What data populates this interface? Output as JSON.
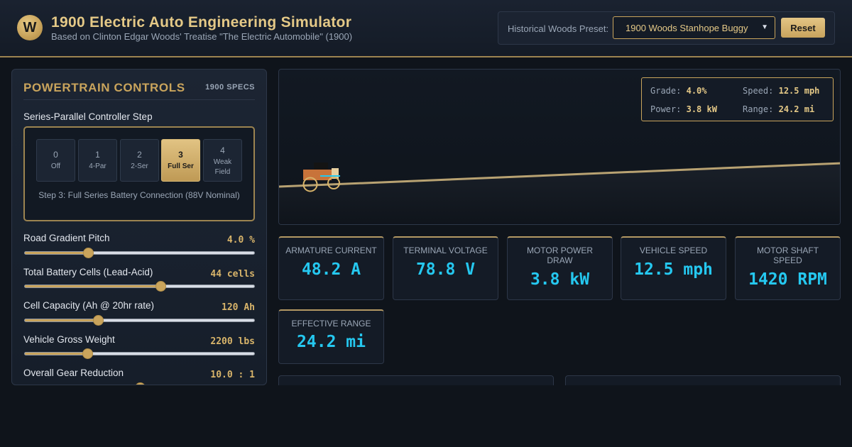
{
  "header": {
    "logo_letter": "W",
    "title": "1900 Electric Auto Engineering Simulator",
    "subtitle": "Based on Clinton Edgar Woods' Treatise \"The Electric Automobile\" (1900)",
    "preset_label": "Historical Woods Preset:",
    "preset_value": "1900 Woods Stanhope Buggy",
    "reset_label": "Reset"
  },
  "controls": {
    "title": "POWERTRAIN CONTROLS",
    "badge": "1900 SPECS",
    "controller": {
      "label": "Series-Parallel Controller Step",
      "steps": [
        {
          "num": "0",
          "label": "Off"
        },
        {
          "num": "1",
          "label": "4-Par"
        },
        {
          "num": "2",
          "label": "2-Ser"
        },
        {
          "num": "3",
          "label": "Full Ser"
        },
        {
          "num": "4",
          "label": "Weak Field"
        }
      ],
      "active_step": 3,
      "description": "Step 3: Full Series Battery Connection (88V Nominal)"
    },
    "sliders": [
      {
        "label": "Road Gradient Pitch",
        "value": "4.0 %",
        "fraction": 0.276
      },
      {
        "label": "Total Battery Cells (Lead-Acid)",
        "value": "44 cells",
        "fraction": 0.59
      },
      {
        "label": "Cell Capacity (Ah @ 20hr rate)",
        "value": "120 Ah",
        "fraction": 0.32
      },
      {
        "label": "Vehicle Gross Weight",
        "value": "2200 lbs",
        "fraction": 0.272
      },
      {
        "label": "Overall Gear Reduction",
        "value": "10.0 : 1",
        "fraction": 0.5
      }
    ]
  },
  "hud": {
    "grade_label": "Grade:",
    "grade_value": "4.0%",
    "speed_label": "Speed:",
    "speed_value": "12.5 mph",
    "power_label": "Power:",
    "power_value": "3.8 kW",
    "range_label": "Range:",
    "range_value": "24.2 mi"
  },
  "scene": {
    "road_color": "#b8a272",
    "car_body_color": "#c8733a",
    "current_color": "#25c8f0"
  },
  "metrics": [
    {
      "label": "ARMATURE CURRENT",
      "value": "48.2 A"
    },
    {
      "label": "TERMINAL VOLTAGE",
      "value": "78.8 V"
    },
    {
      "label": "MOTOR POWER DRAW",
      "value": "3.8 kW"
    },
    {
      "label": "VEHICLE SPEED",
      "value": "12.5 mph"
    },
    {
      "label": "MOTOR SHAFT SPEED",
      "value": "1420 RPM"
    },
    {
      "label": "EFFECTIVE RANGE",
      "value": "24.2 mi"
    }
  ],
  "colors": {
    "accent_gold": "#c9a45c",
    "value_cyan": "#25c8f0",
    "background": "#0f141b"
  }
}
